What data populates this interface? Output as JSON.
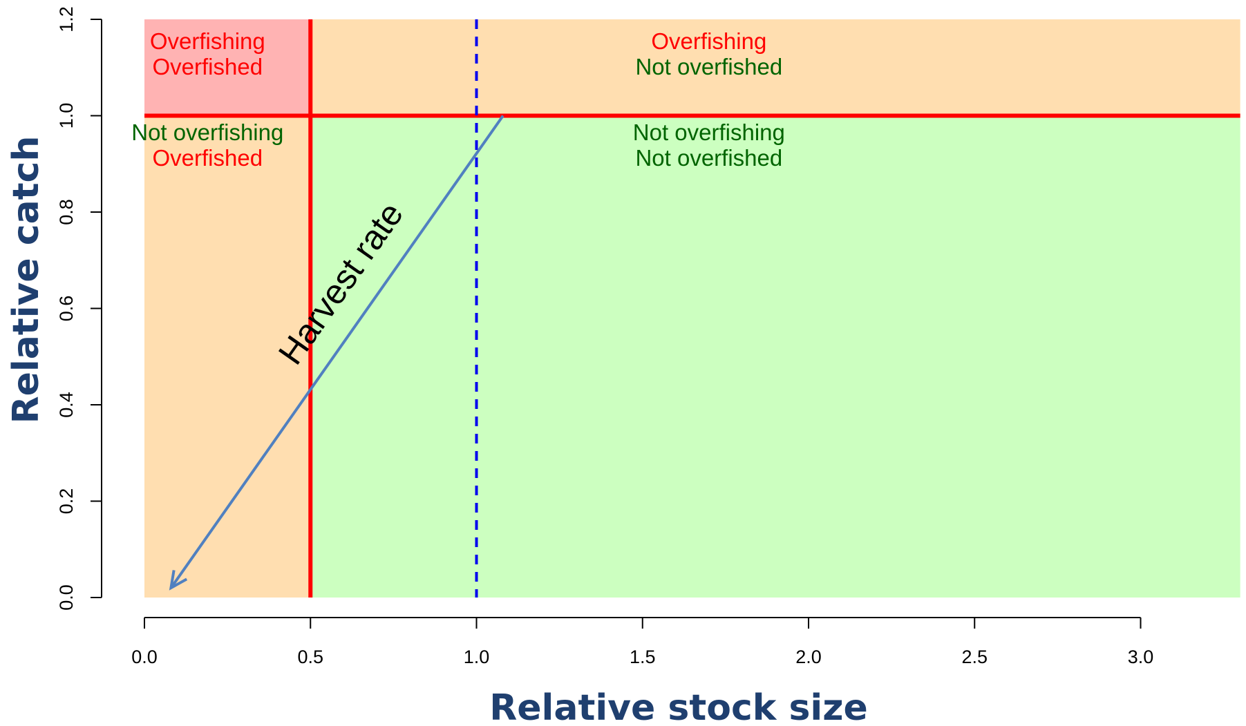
{
  "chart_data": {
    "type": "scatter",
    "title": "",
    "xlabel": "Relative stock size",
    "ylabel": "Relative catch",
    "xlim": [
      0,
      3.3
    ],
    "ylim": [
      0,
      1.2
    ],
    "x_ticks": [
      0.0,
      0.5,
      1.0,
      1.5,
      2.0,
      2.5,
      3.0
    ],
    "x_tick_labels": [
      "0.0",
      "0.5",
      "1.0",
      "1.5",
      "2.0",
      "2.5",
      "3.0"
    ],
    "y_ticks": [
      0.0,
      0.2,
      0.4,
      0.6,
      0.8,
      1.0,
      1.2
    ],
    "y_tick_labels": [
      "0.0",
      "0.2",
      "0.4",
      "0.6",
      "0.8",
      "1.0",
      "1.2"
    ],
    "grid": false,
    "regions": [
      {
        "x": [
          0,
          0.5
        ],
        "y": [
          1.0,
          1.2
        ],
        "color": "#ffb3b3",
        "label_lines": [
          "Overfishing",
          "Overfished"
        ],
        "label_colors": [
          "#ff0000",
          "#ff0000"
        ]
      },
      {
        "x": [
          0.5,
          3.3
        ],
        "y": [
          1.0,
          1.2
        ],
        "color": "#ffdeb0",
        "label_lines": [
          "Overfishing",
          "Not overfished"
        ],
        "label_colors": [
          "#ff0000",
          "#006400"
        ]
      },
      {
        "x": [
          0,
          0.5
        ],
        "y": [
          0,
          1.0
        ],
        "color": "#ffdeb0",
        "label_lines": [
          "Not overfishing",
          "Overfished"
        ],
        "label_colors": [
          "#006400",
          "#ff0000"
        ]
      },
      {
        "x": [
          0.5,
          3.3
        ],
        "y": [
          0,
          1.0
        ],
        "color": "#ccffc0",
        "label_lines": [
          "Not overfishing",
          "Not overfished"
        ],
        "label_colors": [
          "#006400",
          "#006400"
        ]
      }
    ],
    "reference_lines": [
      {
        "orientation": "horizontal",
        "value": 1.0,
        "x_range": [
          0,
          3.3
        ],
        "color": "#ff0000",
        "style": "solid"
      },
      {
        "orientation": "vertical",
        "value": 0.5,
        "y_range": [
          0,
          1.2
        ],
        "color": "#ff0000",
        "style": "solid"
      },
      {
        "orientation": "vertical",
        "value": 1.0,
        "y_range": [
          0,
          1.2
        ],
        "color": "#0000ee",
        "style": "dashed"
      }
    ],
    "arrow": {
      "label": "Harvest rate",
      "from": [
        1.08,
        1.0
      ],
      "to": [
        0.08,
        0.02
      ],
      "color": "#5080c0"
    },
    "axis_title_color": "#1f3f6f"
  }
}
